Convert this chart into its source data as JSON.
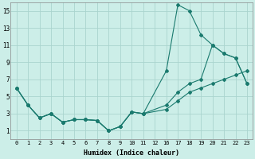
{
  "xlabel": "Humidex (Indice chaleur)",
  "bg_color": "#cceee8",
  "grid_color": "#aad4ce",
  "line_color": "#1a7a6e",
  "s1x": [
    0,
    1,
    2,
    3,
    4,
    5,
    6,
    7,
    8,
    9,
    10,
    11,
    16,
    17,
    18,
    19,
    20,
    21,
    22,
    23
  ],
  "s1y": [
    6.0,
    4.0,
    2.5,
    3.0,
    2.0,
    2.3,
    2.3,
    2.2,
    1.0,
    1.5,
    3.2,
    3.0,
    8.0,
    15.7,
    15.0,
    12.2,
    11.0,
    10.0,
    9.5,
    6.5
  ],
  "s2x": [
    0,
    1,
    2,
    3,
    4,
    5,
    6,
    7,
    8,
    9,
    10,
    11,
    16,
    17,
    18,
    19,
    20,
    21,
    22,
    23
  ],
  "s2y": [
    6.0,
    4.0,
    2.5,
    3.0,
    2.0,
    2.3,
    2.3,
    2.2,
    1.0,
    1.5,
    3.2,
    3.0,
    4.0,
    5.5,
    6.5,
    7.0,
    11.0,
    10.0,
    9.5,
    6.5
  ],
  "s3x": [
    0,
    1,
    2,
    3,
    4,
    5,
    6,
    7,
    8,
    9,
    10,
    11,
    16,
    17,
    18,
    19,
    20,
    21,
    22,
    23
  ],
  "s3y": [
    6.0,
    4.0,
    2.5,
    3.0,
    2.0,
    2.3,
    2.3,
    2.2,
    1.0,
    1.5,
    3.2,
    3.0,
    3.5,
    4.5,
    5.5,
    6.0,
    6.5,
    7.0,
    7.5,
    8.0
  ],
  "xlim": [
    -0.5,
    23.5
  ],
  "ylim": [
    0,
    16
  ],
  "xtick_positions": [
    0,
    1,
    2,
    3,
    4,
    5,
    6,
    7,
    8,
    9,
    10,
    11,
    12,
    16,
    17,
    18,
    19,
    20,
    21,
    22,
    23
  ],
  "xtick_labels": [
    "0",
    "1",
    "2",
    "3",
    "4",
    "5",
    "6",
    "7",
    "8",
    "9",
    "10",
    "11",
    "12",
    "16",
    "17",
    "18",
    "19",
    "20",
    "21",
    "22",
    "23"
  ],
  "yticks": [
    1,
    3,
    5,
    7,
    9,
    11,
    13,
    15
  ],
  "figsize": [
    3.2,
    2.0
  ],
  "dpi": 100
}
